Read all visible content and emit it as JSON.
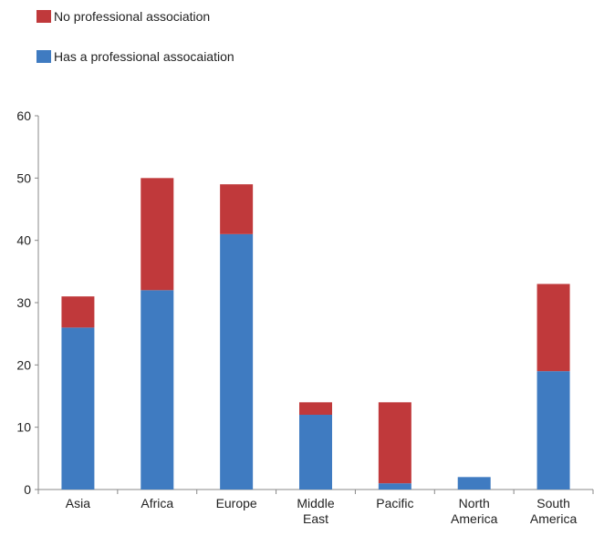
{
  "colors": {
    "no_assoc": "#C0393B",
    "has_assoc": "#3F7BC1",
    "axis": "#888888"
  },
  "chart_data": {
    "type": "bar",
    "stacked": true,
    "categories": [
      [
        "Asia"
      ],
      [
        "Africa"
      ],
      [
        "Europe"
      ],
      [
        "Middle",
        "East"
      ],
      [
        "Pacific"
      ],
      [
        "North",
        "America"
      ],
      [
        "South",
        "America"
      ]
    ],
    "series": [
      {
        "name": "Has a professional assocaiation",
        "values": [
          26,
          32,
          41,
          12,
          1,
          2,
          19
        ]
      },
      {
        "name": "No professional association",
        "values": [
          5,
          18,
          8,
          2,
          13,
          0,
          14
        ]
      }
    ],
    "ylim": [
      0,
      60
    ],
    "yticks": [
      0,
      10,
      20,
      30,
      40,
      50,
      60
    ],
    "legend_position": "top-left",
    "grid": false
  }
}
